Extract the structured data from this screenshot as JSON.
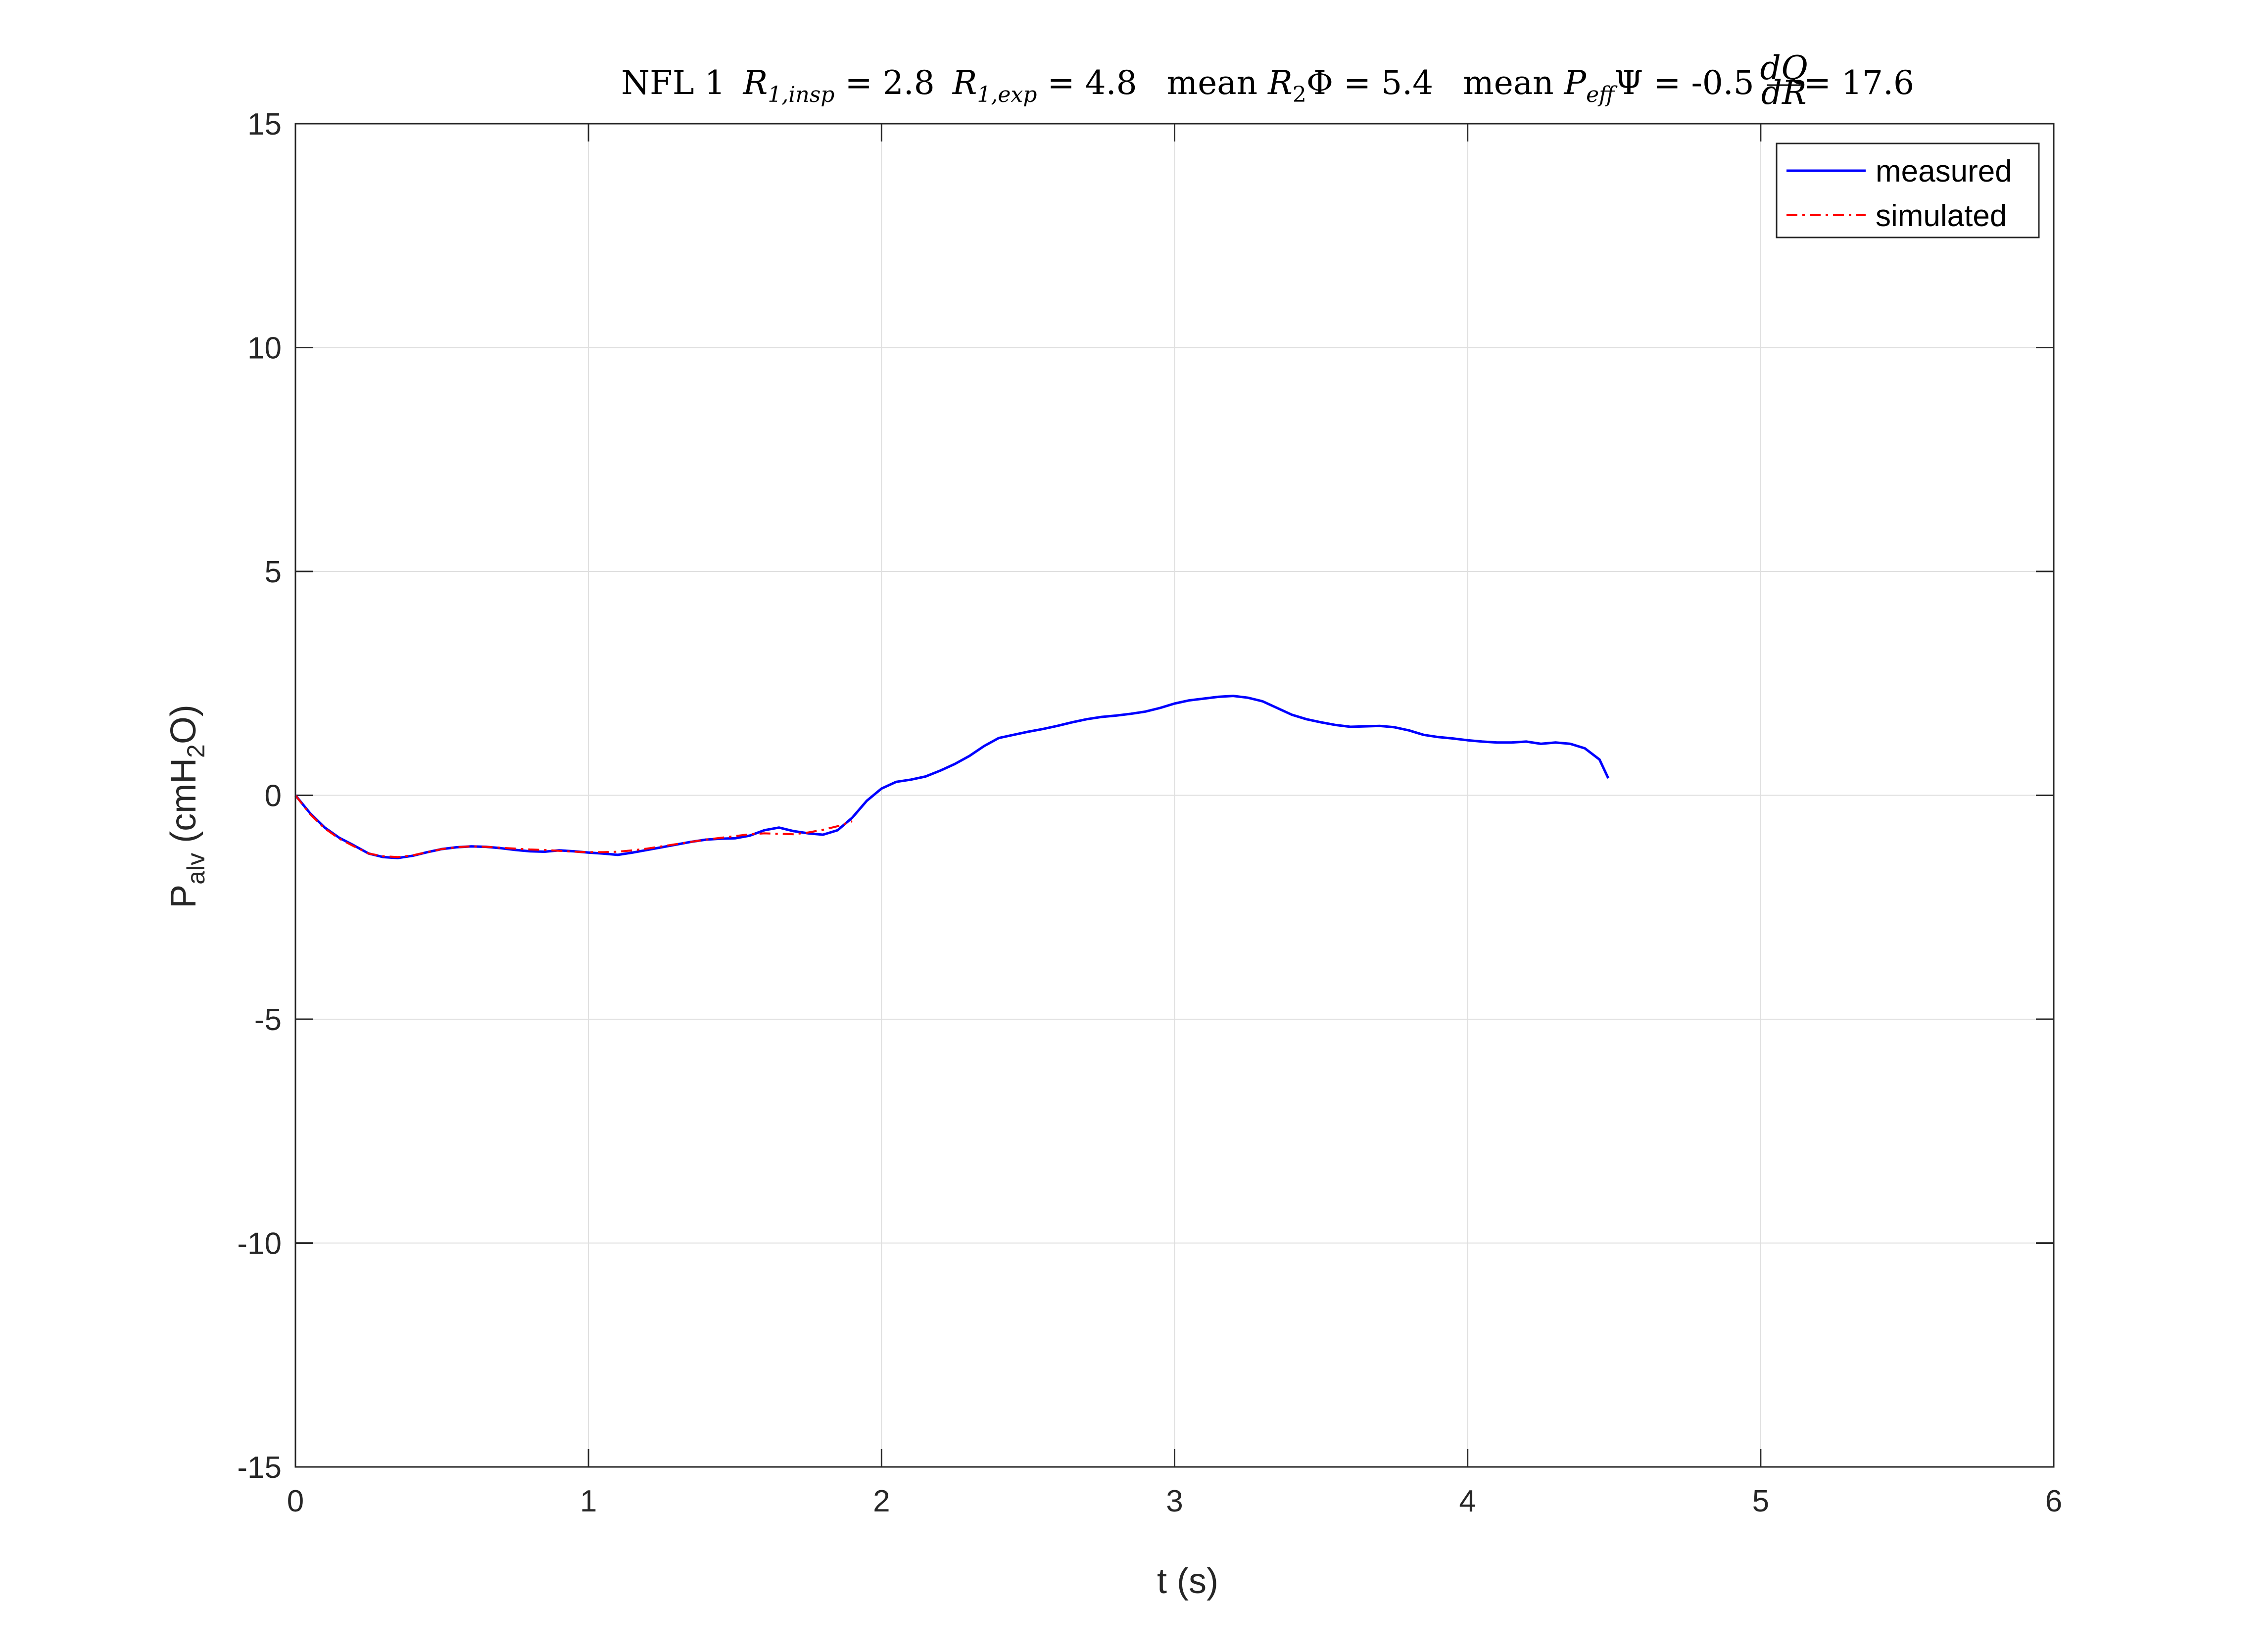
{
  "chart_data": {
    "type": "line",
    "title": {
      "prefix": "NFL 1",
      "r1_insp_sym": "R",
      "r1_insp_sub": "1,insp",
      "r1_insp_val": " = 2.8",
      "r1_exp_sym": "R",
      "r1_exp_sub": "1,exp",
      "r1_exp_val": " = 4.8",
      "mean1_word": "mean ",
      "r2_sym": "R",
      "r2_sub": "2",
      "phi": "Φ",
      "r2_val": " = 5.4",
      "mean2_word": "mean ",
      "peff_sym": "P",
      "peff_sub": "eff",
      "psi": "Ψ",
      "peff_val": " = -0.5",
      "frac_num": "dQ",
      "frac_den": "dR",
      "frac_val": " = 17.6"
    },
    "xlabel": "t (s)",
    "ylabel": {
      "main": "P",
      "sub": "alv",
      "unit_open": " (cmH",
      "unit_sub": "2",
      "unit_close": "O)"
    },
    "xlim": [
      0,
      6
    ],
    "ylim": [
      -15,
      15
    ],
    "xticks": [
      0,
      1,
      2,
      3,
      4,
      5,
      6
    ],
    "xtick_labels": [
      "0",
      "1",
      "2",
      "3",
      "4",
      "5",
      "6"
    ],
    "yticks": [
      -15,
      -10,
      -5,
      0,
      5,
      10,
      15
    ],
    "ytick_labels": [
      "-15",
      "-10",
      "-5",
      "0",
      "5",
      "10",
      "15"
    ],
    "grid": true,
    "legend_position": "top-right",
    "series": [
      {
        "name": "measured",
        "color": "#0000ff",
        "style": "solid",
        "x": [
          0,
          0.05,
          0.1,
          0.15,
          0.2,
          0.25,
          0.3,
          0.35,
          0.4,
          0.45,
          0.5,
          0.55,
          0.6,
          0.65,
          0.7,
          0.75,
          0.8,
          0.85,
          0.9,
          0.95,
          1.0,
          1.05,
          1.1,
          1.15,
          1.2,
          1.25,
          1.3,
          1.35,
          1.4,
          1.45,
          1.5,
          1.55,
          1.6,
          1.65,
          1.7,
          1.75,
          1.8,
          1.85,
          1.9,
          1.95,
          2.0,
          2.05,
          2.1,
          2.15,
          2.2,
          2.25,
          2.3,
          2.35,
          2.4,
          2.45,
          2.5,
          2.55,
          2.6,
          2.65,
          2.7,
          2.75,
          2.8,
          2.85,
          2.9,
          2.95,
          3.0,
          3.05,
          3.1,
          3.15,
          3.2,
          3.25,
          3.3,
          3.35,
          3.4,
          3.45,
          3.5,
          3.55,
          3.6,
          3.65,
          3.7,
          3.75,
          3.8,
          3.85,
          3.9,
          3.95,
          4.0,
          4.05,
          4.1,
          4.15,
          4.2,
          4.25,
          4.3,
          4.35,
          4.4,
          4.45,
          4.48
        ],
        "y": [
          0,
          -0.4,
          -0.72,
          -0.95,
          -1.12,
          -1.3,
          -1.38,
          -1.4,
          -1.35,
          -1.27,
          -1.2,
          -1.16,
          -1.14,
          -1.15,
          -1.18,
          -1.22,
          -1.25,
          -1.26,
          -1.23,
          -1.25,
          -1.28,
          -1.3,
          -1.33,
          -1.28,
          -1.22,
          -1.16,
          -1.1,
          -1.04,
          -0.99,
          -0.97,
          -0.96,
          -0.9,
          -0.78,
          -0.72,
          -0.8,
          -0.85,
          -0.88,
          -0.78,
          -0.5,
          -0.12,
          0.15,
          0.3,
          0.35,
          0.42,
          0.55,
          0.7,
          0.88,
          1.1,
          1.28,
          1.35,
          1.42,
          1.48,
          1.55,
          1.63,
          1.7,
          1.75,
          1.78,
          1.82,
          1.87,
          1.95,
          2.05,
          2.12,
          2.16,
          2.2,
          2.22,
          2.18,
          2.1,
          1.95,
          1.8,
          1.7,
          1.63,
          1.57,
          1.53,
          1.54,
          1.55,
          1.52,
          1.45,
          1.35,
          1.3,
          1.27,
          1.23,
          1.2,
          1.18,
          1.18,
          1.2,
          1.15,
          1.18,
          1.15,
          1.05,
          0.8,
          0.38
        ]
      },
      {
        "name": "simulated",
        "color": "#ff0000",
        "style": "dashdot",
        "x": [
          0,
          0.05,
          0.1,
          0.15,
          0.2,
          0.25,
          0.3,
          0.35,
          0.4,
          0.45,
          0.5,
          0.55,
          0.6,
          0.65,
          0.7,
          0.75,
          0.8,
          0.85,
          0.9,
          0.95,
          1.0,
          1.05,
          1.1,
          1.15,
          1.2,
          1.25,
          1.3,
          1.35,
          1.4,
          1.45,
          1.5,
          1.55,
          1.6,
          1.65,
          1.7,
          1.75,
          1.8,
          1.85,
          1.9
        ],
        "y": [
          0,
          -0.42,
          -0.74,
          -0.97,
          -1.14,
          -1.3,
          -1.36,
          -1.38,
          -1.34,
          -1.27,
          -1.2,
          -1.16,
          -1.14,
          -1.15,
          -1.17,
          -1.19,
          -1.21,
          -1.22,
          -1.24,
          -1.26,
          -1.27,
          -1.27,
          -1.26,
          -1.23,
          -1.19,
          -1.14,
          -1.09,
          -1.04,
          -0.99,
          -0.95,
          -0.91,
          -0.87,
          -0.85,
          -0.86,
          -0.87,
          -0.83,
          -0.77,
          -0.69,
          -0.58
        ]
      }
    ]
  }
}
